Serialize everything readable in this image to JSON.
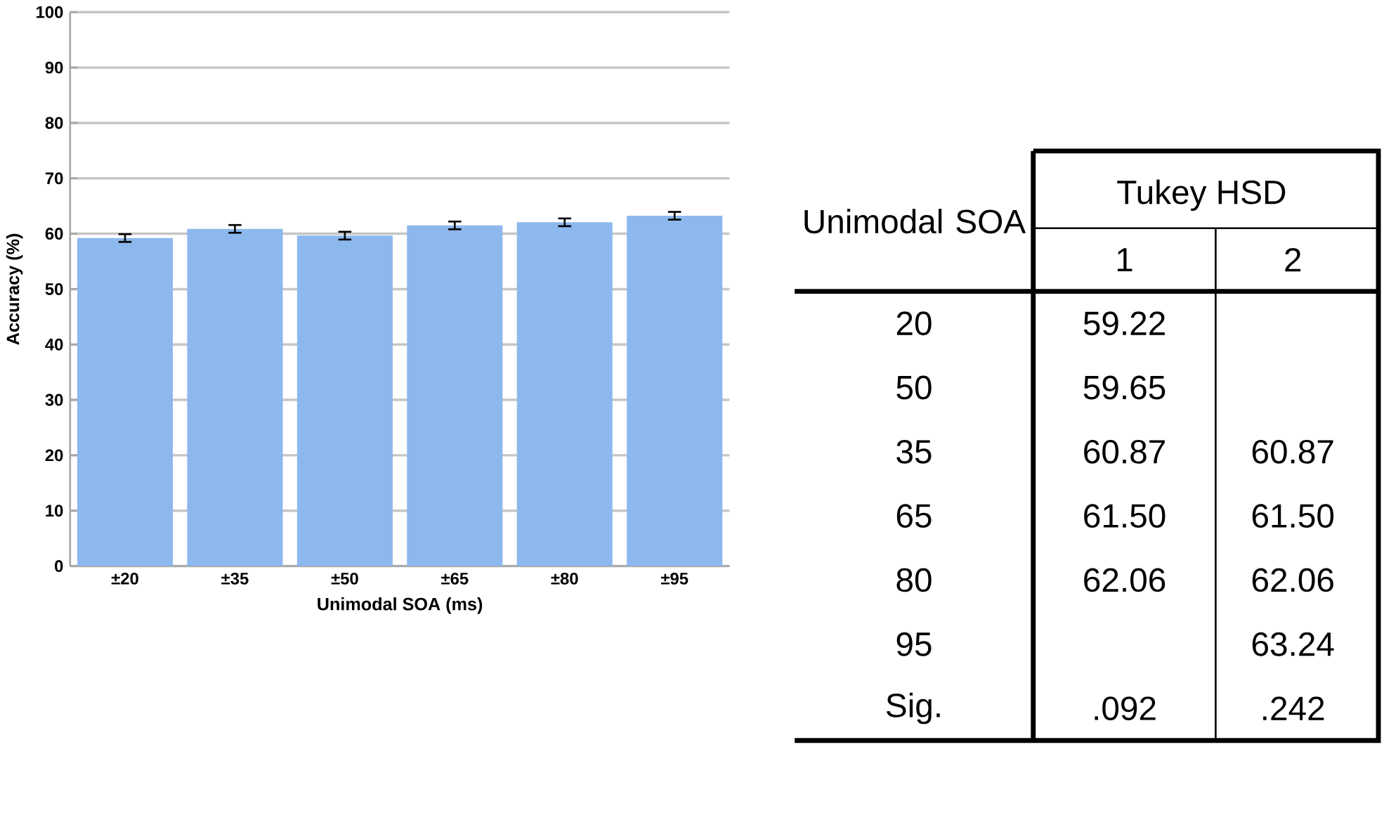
{
  "chart_data": [
    {
      "type": "bar",
      "xlabel": "Unimodal SOA (ms)",
      "ylabel": "Accuracy (%)",
      "categories": [
        "±20",
        "±35",
        "±50",
        "±65",
        "±80",
        "±95"
      ],
      "values": [
        59.22,
        60.87,
        59.65,
        61.5,
        62.06,
        63.24
      ],
      "errors": [
        0.7,
        0.7,
        0.7,
        0.7,
        0.7,
        0.7
      ],
      "color": "#8db8ee",
      "ylim": [
        0,
        100
      ],
      "yticks": [
        0,
        10,
        20,
        30,
        40,
        50,
        60,
        70,
        80,
        90,
        100
      ],
      "grid": "y"
    },
    {
      "type": "other",
      "annotations": [
        "Unimodal SOA",
        "Tukey HSD",
        "1",
        "2",
        "20",
        "59.22",
        "50",
        "59.65",
        "35",
        "60.87",
        "60.87",
        "65",
        "61.50",
        "61.50",
        "80",
        "62.06",
        "62.06",
        "95",
        "63.24",
        "Sig.",
        ".092",
        ".242"
      ]
    }
  ]
}
